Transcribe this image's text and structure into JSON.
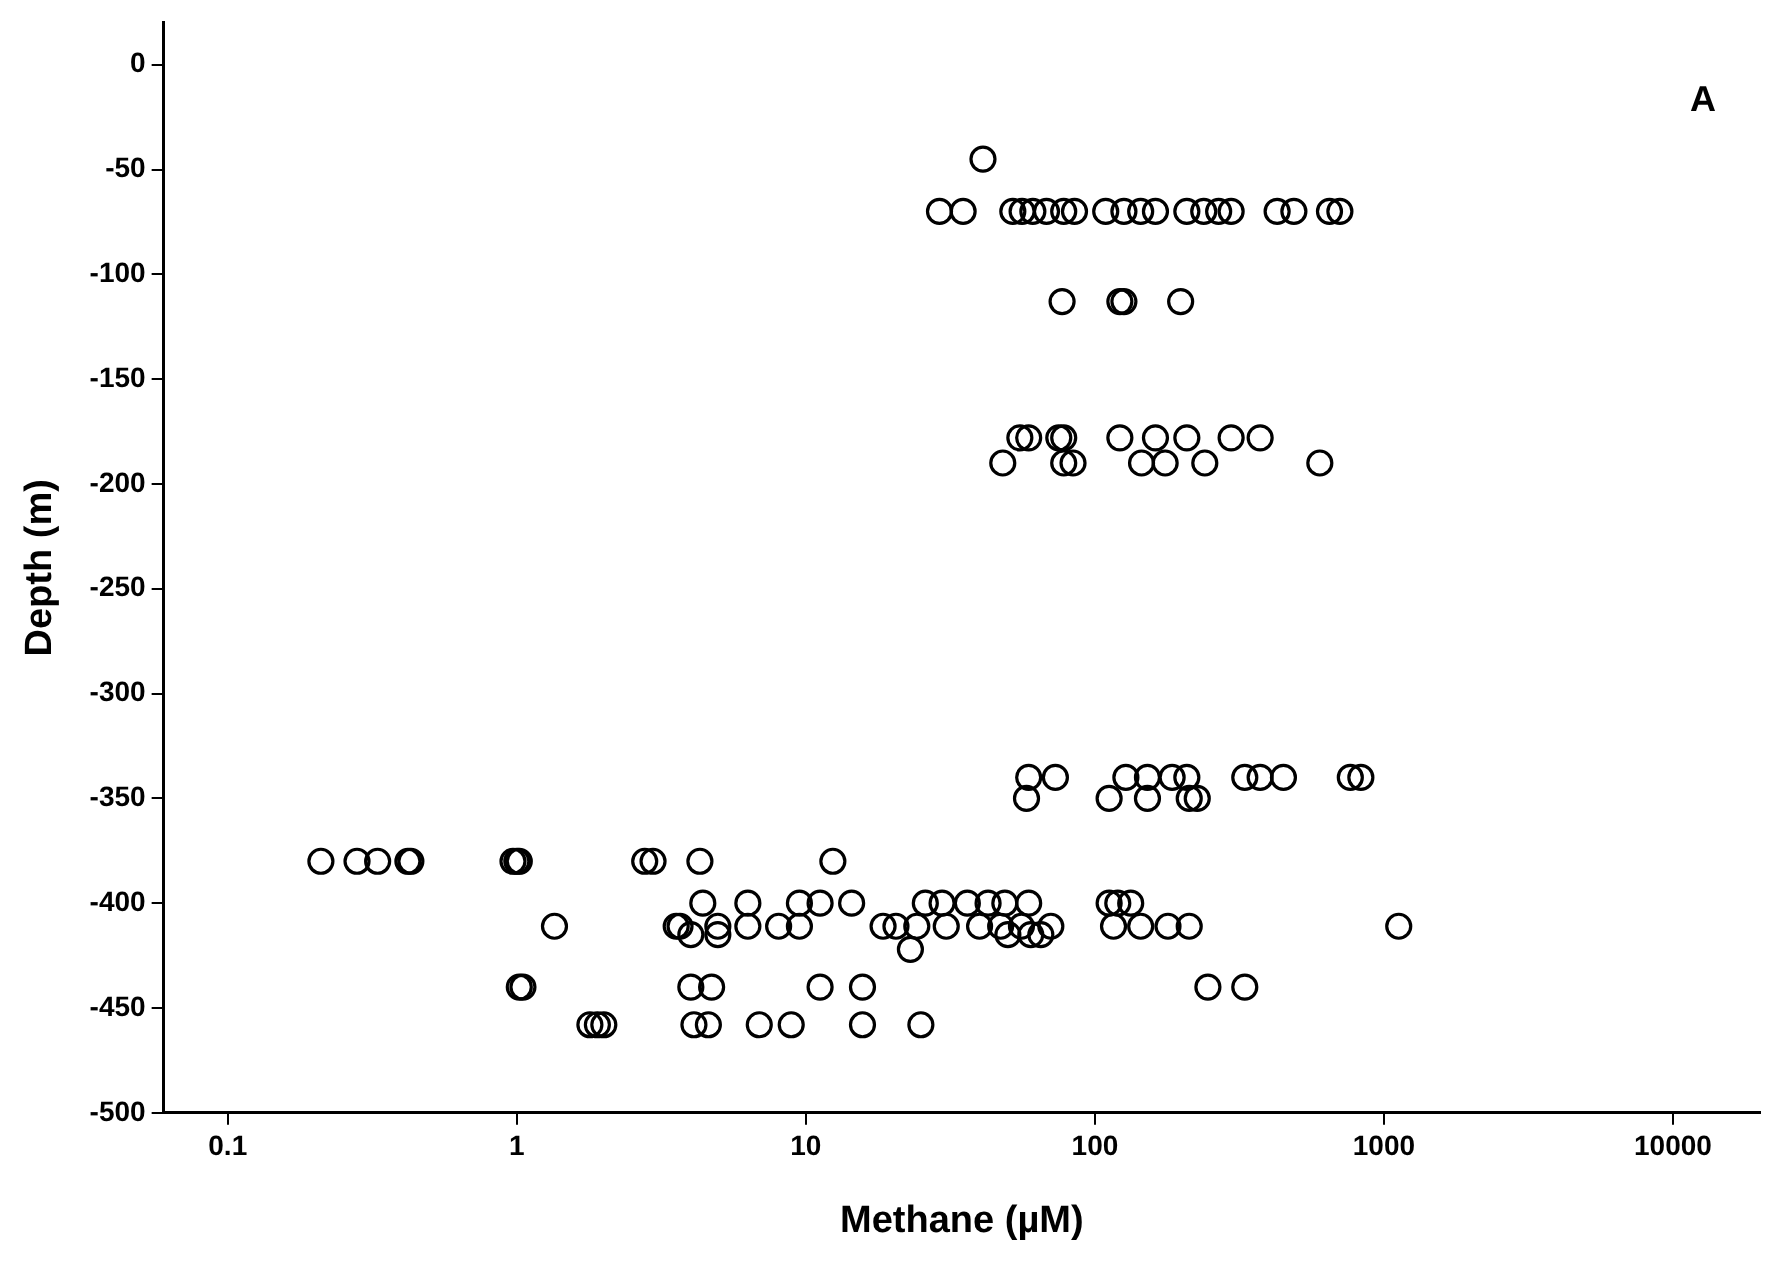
{
  "chart_data": {
    "type": "scatter",
    "xlabel": "Methane (µM)",
    "ylabel": "Depth (m)",
    "annotations": [
      "A"
    ],
    "log": "x",
    "grid": false,
    "legend": false,
    "marker": "circle",
    "color": "#000000",
    "xlim": [
      0.06,
      20000
    ],
    "xticks": [
      0.1,
      1,
      10,
      100,
      1000,
      10000
    ],
    "ylim": [
      -500,
      20
    ],
    "yticks": [
      0,
      -50,
      -100,
      -150,
      -200,
      -250,
      -300,
      -350,
      -400,
      -450,
      -500
    ],
    "x": [
      41,
      29,
      35,
      52,
      56,
      61,
      68,
      78,
      85,
      109,
      126,
      144,
      162,
      208,
      238,
      268,
      296,
      427,
      488,
      648,
      704,
      77,
      122,
      126,
      198,
      55,
      59,
      75,
      78,
      122,
      162,
      208,
      296,
      373,
      48,
      78,
      84,
      145,
      175,
      240,
      600,
      59,
      73,
      128,
      152,
      185,
      208,
      330,
      373,
      449,
      765,
      832,
      58,
      112,
      152,
      212,
      226,
      0.21,
      0.28,
      0.33,
      0.42,
      0.43,
      0.97,
      1.0,
      1.02,
      2.77,
      2.96,
      4.3,
      12.4,
      4.4,
      6.3,
      9.5,
      11.2,
      14.4,
      25.9,
      29.6,
      36.2,
      42.7,
      48.8,
      59,
      112,
      120,
      133,
      1.35,
      3.56,
      3.67,
      6.3,
      8.05,
      9.5,
      4.96,
      18.5,
      20.5,
      24.2,
      30.6,
      39.9,
      47.2,
      55.7,
      70.4,
      116,
      144,
      179,
      212,
      1125,
      4.0,
      4.96,
      50,
      60,
      65,
      23,
      1.02,
      1.05,
      4.0,
      4.72,
      11.2,
      15.7,
      246,
      330,
      1.79,
      1.9,
      2.0,
      4.1,
      4.6,
      6.9,
      8.9,
      15.7,
      25
    ],
    "values": [
      -45,
      -70,
      -70,
      -70,
      -70,
      -70,
      -70,
      -70,
      -70,
      -70,
      -70,
      -70,
      -70,
      -70,
      -70,
      -70,
      -70,
      -70,
      -70,
      -70,
      -70,
      -113,
      -113,
      -113,
      -113,
      -178,
      -178,
      -178,
      -178,
      -178,
      -178,
      -178,
      -178,
      -178,
      -190,
      -190,
      -190,
      -190,
      -190,
      -190,
      -190,
      -340,
      -340,
      -340,
      -340,
      -340,
      -340,
      -340,
      -340,
      -340,
      -340,
      -340,
      -350,
      -350,
      -350,
      -350,
      -350,
      -380,
      -380,
      -380,
      -380,
      -380,
      -380,
      -380,
      -380,
      -380,
      -380,
      -380,
      -380,
      -400,
      -400,
      -400,
      -400,
      -400,
      -400,
      -400,
      -400,
      -400,
      -400,
      -400,
      -400,
      -400,
      -400,
      -411,
      -411,
      -411,
      -411,
      -411,
      -411,
      -411,
      -411,
      -411,
      -411,
      -411,
      -411,
      -411,
      -411,
      -411,
      -411,
      -411,
      -411,
      -411,
      -411,
      -415,
      -415,
      -415,
      -415,
      -415,
      -422,
      -440,
      -440,
      -440,
      -440,
      -440,
      -440,
      -440,
      -440,
      -458,
      -458,
      -458,
      -458,
      -458,
      -458,
      -458,
      -458,
      -458
    ]
  }
}
